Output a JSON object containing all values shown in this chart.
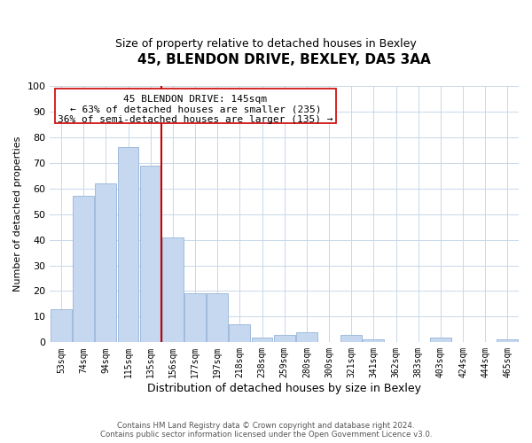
{
  "title": "45, BLENDON DRIVE, BEXLEY, DA5 3AA",
  "subtitle": "Size of property relative to detached houses in Bexley",
  "xlabel": "Distribution of detached houses by size in Bexley",
  "ylabel": "Number of detached properties",
  "categories": [
    "53sqm",
    "74sqm",
    "94sqm",
    "115sqm",
    "135sqm",
    "156sqm",
    "177sqm",
    "197sqm",
    "218sqm",
    "238sqm",
    "259sqm",
    "280sqm",
    "300sqm",
    "321sqm",
    "341sqm",
    "362sqm",
    "383sqm",
    "403sqm",
    "424sqm",
    "444sqm",
    "465sqm"
  ],
  "values": [
    13,
    57,
    62,
    76,
    69,
    41,
    19,
    19,
    7,
    2,
    3,
    4,
    0,
    3,
    1,
    0,
    0,
    2,
    0,
    0,
    1
  ],
  "bar_color": "#c5d8f0",
  "bar_edge_color": "#a0bbdd",
  "vline_color": "#cc0000",
  "ylim": [
    0,
    100
  ],
  "annotation_line1": "45 BLENDON DRIVE: 145sqm",
  "annotation_line2": "← 63% of detached houses are smaller (235)",
  "annotation_line3": "36% of semi-detached houses are larger (135) →",
  "footer_line1": "Contains HM Land Registry data © Crown copyright and database right 2024.",
  "footer_line2": "Contains public sector information licensed under the Open Government Licence v3.0.",
  "background_color": "#ffffff",
  "grid_color": "#c8d8e8"
}
